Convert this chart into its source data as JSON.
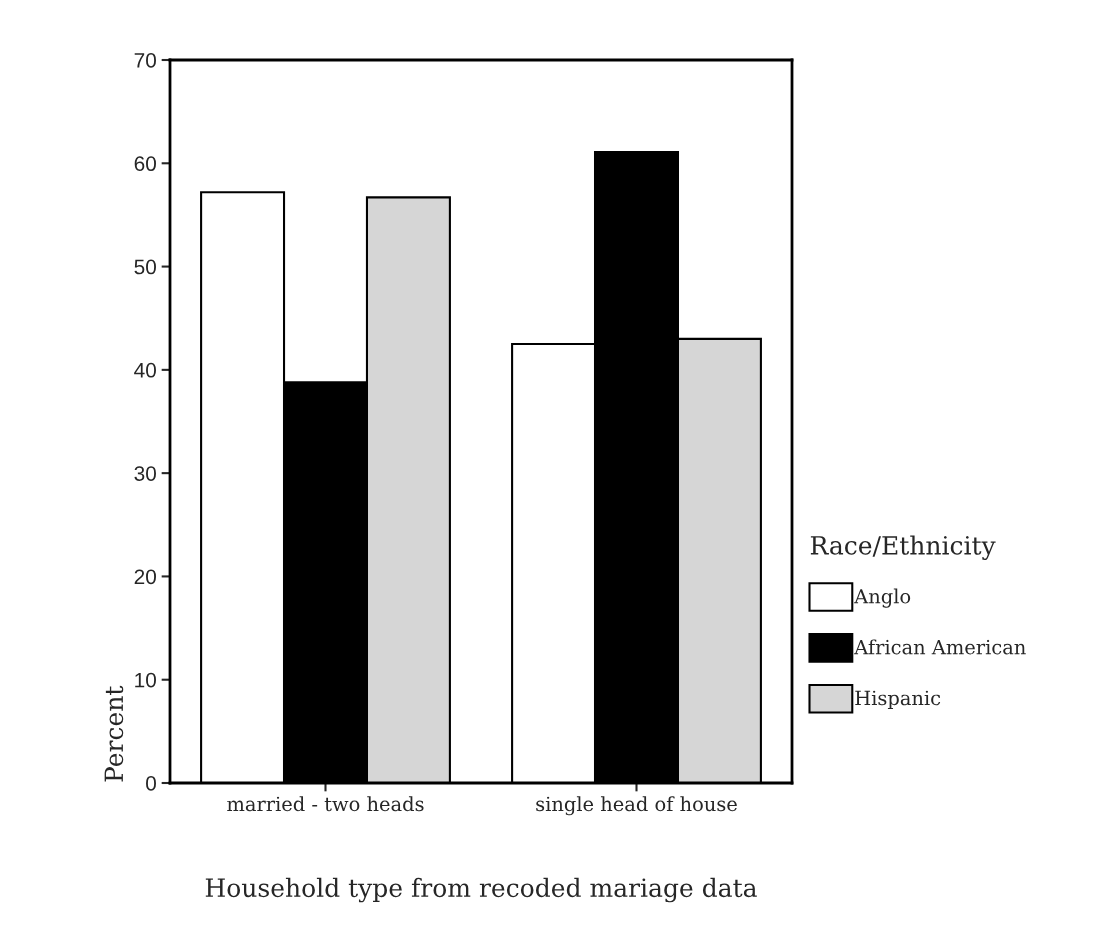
{
  "chart_data": {
    "type": "bar",
    "categories": [
      "married - two heads",
      "single head of house"
    ],
    "series": [
      {
        "name": "Anglo",
        "color": "#ffffff",
        "values": [
          57.2,
          42.5
        ]
      },
      {
        "name": "African American",
        "color": "#000000",
        "values": [
          38.8,
          61.1
        ]
      },
      {
        "name": "Hispanic",
        "color": "#d6d6d6",
        "values": [
          56.7,
          43.0
        ]
      }
    ],
    "xlabel": "Household type from recoded mariage data",
    "ylabel": "Percent",
    "legend_title": "Race/Ethnicity",
    "ylim": [
      0,
      70
    ],
    "yticks": [
      0,
      10,
      20,
      30,
      40,
      50,
      60,
      70
    ],
    "grid": false,
    "legend": "right"
  }
}
